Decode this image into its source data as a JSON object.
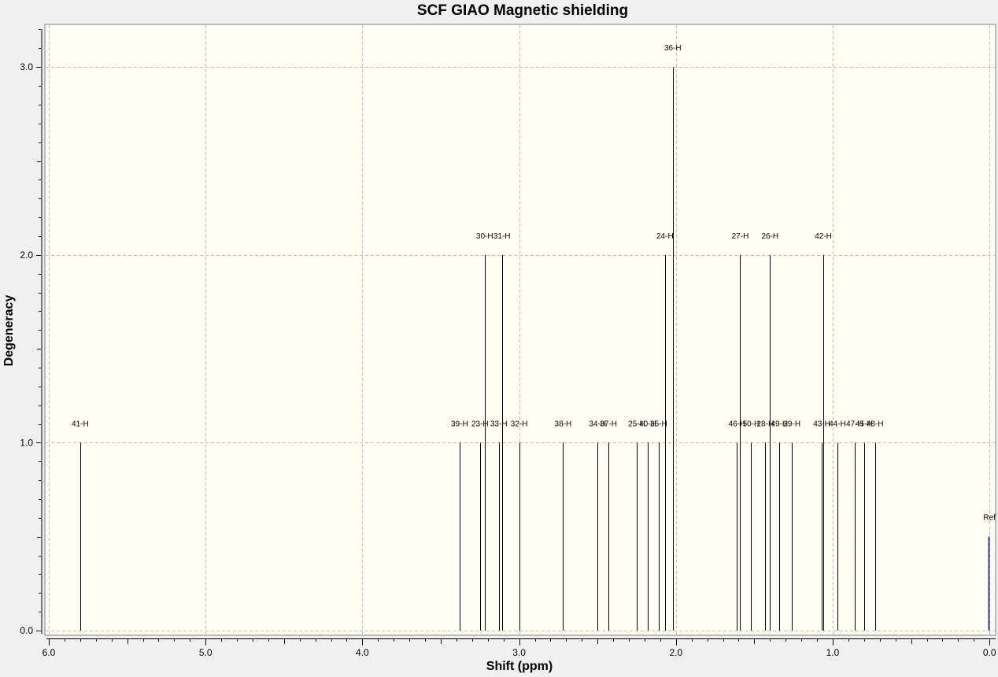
{
  "chart_data": {
    "type": "bar",
    "title": "SCF GIAO Magnetic shielding",
    "xlabel": "Shift (ppm)",
    "ylabel": "Degeneracy",
    "xlim": [
      6.0,
      0.0
    ],
    "ylim": [
      0.0,
      3.2
    ],
    "x_ticks": [
      "6.0",
      "5.0",
      "4.0",
      "3.0",
      "2.0",
      "1.0",
      "0.0"
    ],
    "y_ticks": [
      "0.0",
      "1.0",
      "2.0",
      "3.0"
    ],
    "grid": true,
    "plot_background": "#fffff4",
    "line_color": "#000000",
    "ref_color": "#00007a",
    "peaks": [
      {
        "label": "41-H",
        "shift": 5.8,
        "degeneracy": 1
      },
      {
        "label": "39-H",
        "shift": 3.38,
        "degeneracy": 1
      },
      {
        "label": "23-H",
        "shift": 3.25,
        "degeneracy": 1
      },
      {
        "label": "30-H",
        "shift": 3.22,
        "degeneracy": 2
      },
      {
        "label": "33-H",
        "shift": 3.13,
        "degeneracy": 1
      },
      {
        "label": "31-H",
        "shift": 3.11,
        "degeneracy": 2
      },
      {
        "label": "32-H",
        "shift": 3.0,
        "degeneracy": 1
      },
      {
        "label": "38-H",
        "shift": 2.72,
        "degeneracy": 1
      },
      {
        "label": "34-H",
        "shift": 2.5,
        "degeneracy": 1
      },
      {
        "label": "37-H",
        "shift": 2.43,
        "degeneracy": 1
      },
      {
        "label": "25-H",
        "shift": 2.25,
        "degeneracy": 1
      },
      {
        "label": "40-H",
        "shift": 2.18,
        "degeneracy": 1
      },
      {
        "label": "35-H",
        "shift": 2.11,
        "degeneracy": 1
      },
      {
        "label": "24-H",
        "shift": 2.07,
        "degeneracy": 2
      },
      {
        "label": "36-H",
        "shift": 2.02,
        "degeneracy": 3
      },
      {
        "label": "46-H",
        "shift": 1.61,
        "degeneracy": 1
      },
      {
        "label": "27-H",
        "shift": 1.59,
        "degeneracy": 2
      },
      {
        "label": "50-H",
        "shift": 1.52,
        "degeneracy": 1
      },
      {
        "label": "28-H",
        "shift": 1.43,
        "degeneracy": 1
      },
      {
        "label": "26-H",
        "shift": 1.4,
        "degeneracy": 2
      },
      {
        "label": "49-H",
        "shift": 1.34,
        "degeneracy": 1
      },
      {
        "label": "29-H",
        "shift": 1.26,
        "degeneracy": 1
      },
      {
        "label": "43-H",
        "shift": 1.07,
        "degeneracy": 1
      },
      {
        "label": "42-H",
        "shift": 1.06,
        "degeneracy": 2
      },
      {
        "label": "44-H",
        "shift": 0.97,
        "degeneracy": 1
      },
      {
        "label": "47-H",
        "shift": 0.86,
        "degeneracy": 1
      },
      {
        "label": "45-H",
        "shift": 0.8,
        "degeneracy": 1
      },
      {
        "label": "48-H",
        "shift": 0.73,
        "degeneracy": 1
      }
    ],
    "reference": {
      "label": "Ref",
      "shift": 0.0,
      "degeneracy": 0.5
    }
  }
}
